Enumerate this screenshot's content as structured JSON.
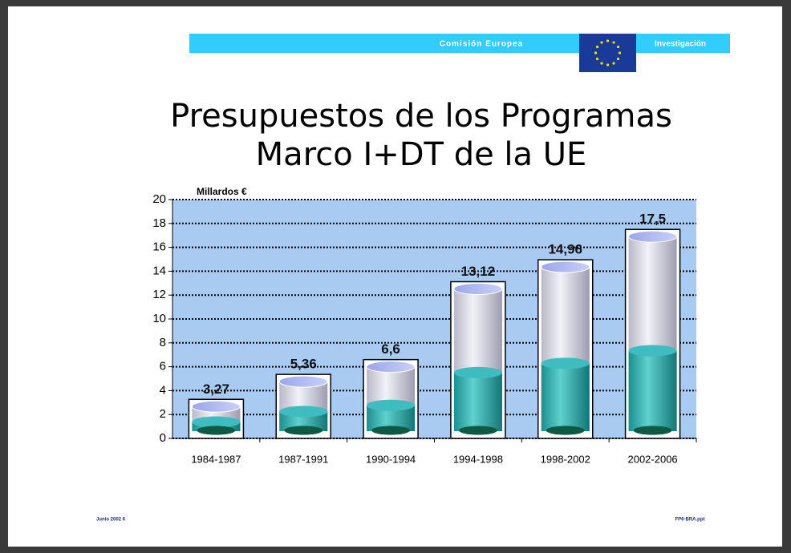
{
  "header": {
    "left": "Comisión Europea",
    "right": "Investigación"
  },
  "footer": {
    "left": "Junio 2002  6",
    "right": "FP6-BRA.ppt"
  },
  "chart_data": {
    "type": "cylinder",
    "title": [
      "Presupuestos de los Programas",
      "Marco I+DT de la UE"
    ],
    "y_label": "Millardos €",
    "categories": [
      "1984-1987",
      "1987-1991",
      "1990-1994",
      "1994-1998",
      "1998-2002",
      "2002-2006"
    ],
    "values": [
      3.27,
      5.36,
      6.6,
      13.12,
      14.96,
      17.5
    ],
    "value_labels": [
      "3,27",
      "5,36",
      "6,6",
      "13,12",
      "14,96",
      "17,5"
    ],
    "ylim": [
      0,
      20
    ],
    "yticks": [
      0,
      2,
      4,
      6,
      8,
      10,
      12,
      14,
      16,
      18,
      20
    ],
    "grid": true,
    "plot_color": "#a9cbf2",
    "color": "#d9d9e6"
  }
}
